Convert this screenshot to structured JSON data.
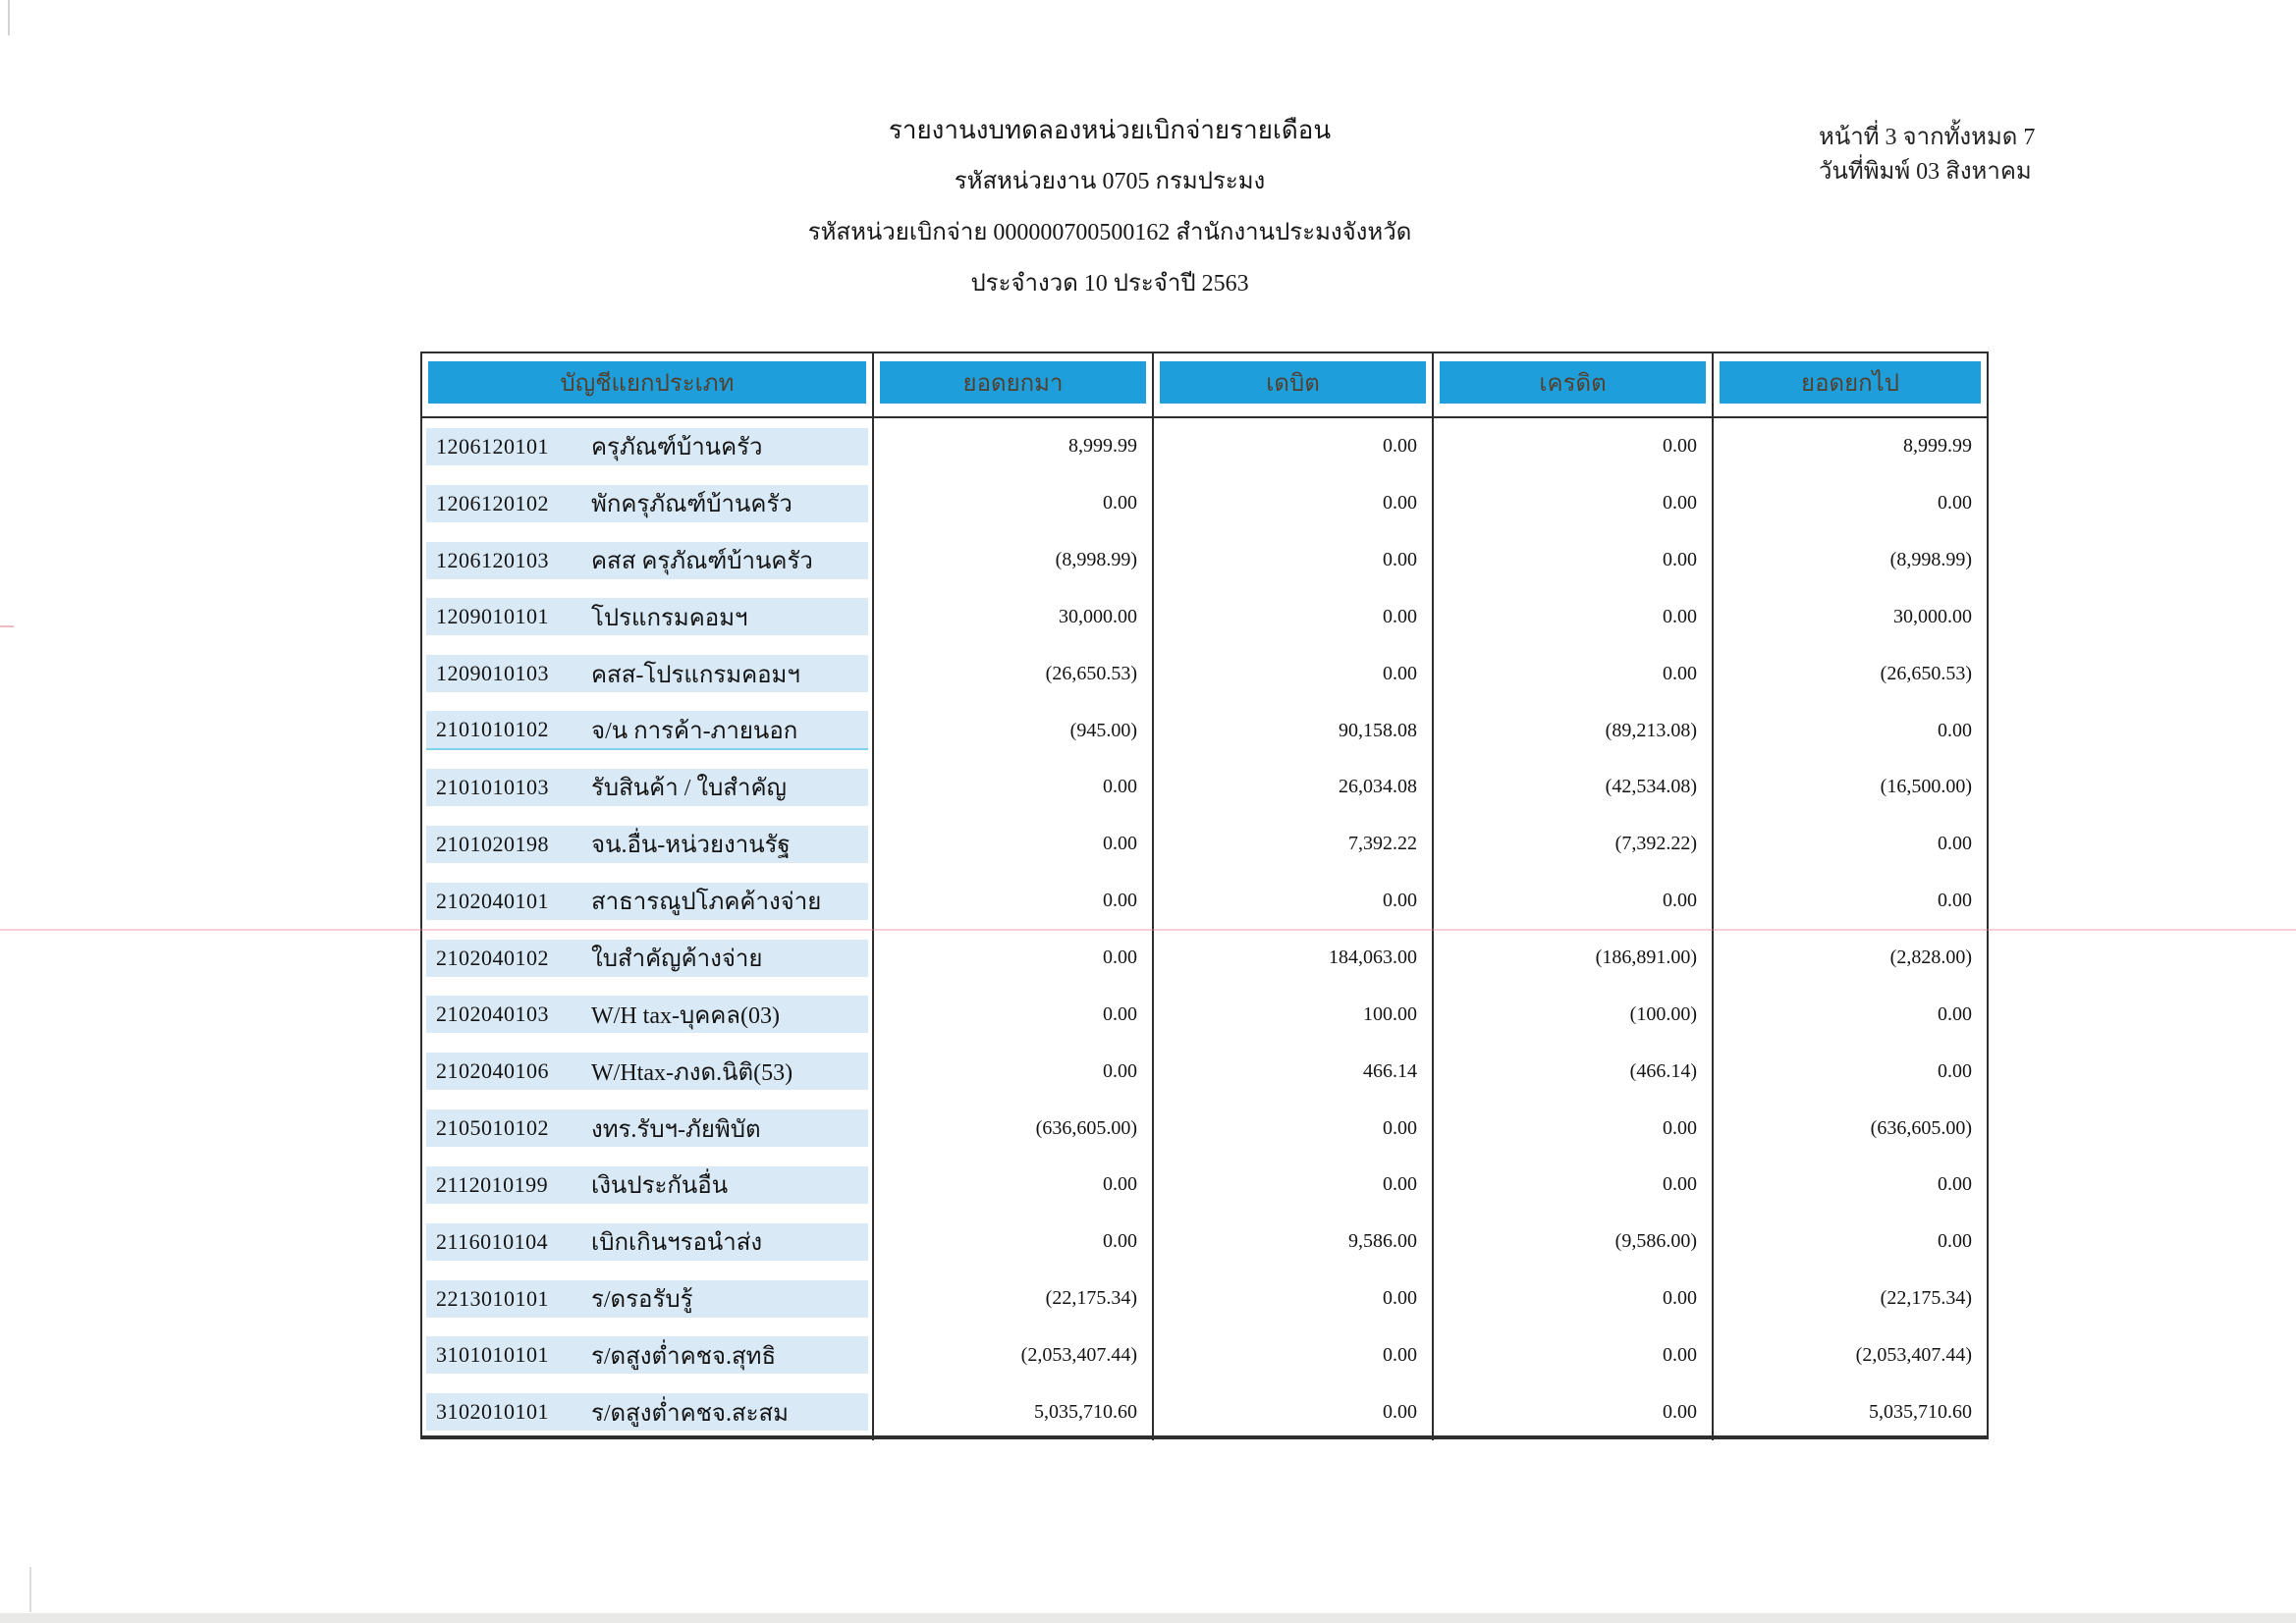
{
  "header": {
    "title_line1": "รายงานงบทดลองหน่วยเบิกจ่ายรายเดือน",
    "title_line2": "รหัสหน่วยงาน 0705 กรมประมง",
    "title_line3": "รหัสหน่วยเบิกจ่าย 000000700500162 สำนักงานประมงจังหวัด",
    "title_line4": "ประจำงวด 10 ประจำปี 2563"
  },
  "page_info": {
    "page_line": "หน้าที่ 3   จากทั้งหมด 7",
    "date_line": "วันที่พิมพ์  03 สิงหาคม"
  },
  "table": {
    "columns": {
      "account": "บัญชีแยกประเภท",
      "carry_forward": "ยอดยกมา",
      "debit": "เดบิต",
      "credit": "เครดิต",
      "balance": "ยอดยกไป"
    },
    "rows": [
      {
        "code": "1206120101",
        "name": "ครุภัณฑ์บ้านครัว",
        "carry_forward": "8,999.99",
        "debit": "0.00",
        "credit": "0.00",
        "balance": "8,999.99"
      },
      {
        "code": "1206120102",
        "name": "พักครุภัณฑ์บ้านครัว",
        "carry_forward": "0.00",
        "debit": "0.00",
        "credit": "0.00",
        "balance": "0.00"
      },
      {
        "code": "1206120103",
        "name": "คสส ครุภัณฑ์บ้านครัว",
        "carry_forward": "(8,998.99)",
        "debit": "0.00",
        "credit": "0.00",
        "balance": "(8,998.99)"
      },
      {
        "code": "1209010101",
        "name": "โปรแกรมคอมฯ",
        "carry_forward": "30,000.00",
        "debit": "0.00",
        "credit": "0.00",
        "balance": "30,000.00"
      },
      {
        "code": "1209010103",
        "name": "คสส-โปรแกรมคอมฯ",
        "carry_forward": "(26,650.53)",
        "debit": "0.00",
        "credit": "0.00",
        "balance": "(26,650.53)"
      },
      {
        "code": "2101010102",
        "name": "จ/น การค้า-ภายนอก",
        "carry_forward": "(945.00)",
        "debit": "90,158.08",
        "credit": "(89,213.08)",
        "balance": "0.00"
      },
      {
        "code": "2101010103",
        "name": "รับสินค้า / ใบสำคัญ",
        "carry_forward": "0.00",
        "debit": "26,034.08",
        "credit": "(42,534.08)",
        "balance": "(16,500.00)"
      },
      {
        "code": "2101020198",
        "name": "จน.อื่น-หน่วยงานรัฐ",
        "carry_forward": "0.00",
        "debit": "7,392.22",
        "credit": "(7,392.22)",
        "balance": "0.00"
      },
      {
        "code": "2102040101",
        "name": "สาธารณูปโภคค้างจ่าย",
        "carry_forward": "0.00",
        "debit": "0.00",
        "credit": "0.00",
        "balance": "0.00"
      },
      {
        "code": "2102040102",
        "name": "ใบสำคัญค้างจ่าย",
        "carry_forward": "0.00",
        "debit": "184,063.00",
        "credit": "(186,891.00)",
        "balance": "(2,828.00)"
      },
      {
        "code": "2102040103",
        "name": "W/H tax-บุคคล(03)",
        "carry_forward": "0.00",
        "debit": "100.00",
        "credit": "(100.00)",
        "balance": "0.00"
      },
      {
        "code": "2102040106",
        "name": "W/Htax-ภงด.นิติ(53)",
        "carry_forward": "0.00",
        "debit": "466.14",
        "credit": "(466.14)",
        "balance": "0.00"
      },
      {
        "code": "2105010102",
        "name": "งทร.รับฯ-ภัยพิบัต",
        "carry_forward": "(636,605.00)",
        "debit": "0.00",
        "credit": "0.00",
        "balance": "(636,605.00)"
      },
      {
        "code": "2112010199",
        "name": "เงินประกันอื่น",
        "carry_forward": "0.00",
        "debit": "0.00",
        "credit": "0.00",
        "balance": "0.00"
      },
      {
        "code": "2116010104",
        "name": "เบิกเกินฯรอนำส่ง",
        "carry_forward": "0.00",
        "debit": "9,586.00",
        "credit": "(9,586.00)",
        "balance": "0.00"
      },
      {
        "code": "2213010101",
        "name": "ร/ดรอรับรู้",
        "carry_forward": "(22,175.34)",
        "debit": "0.00",
        "credit": "0.00",
        "balance": "(22,175.34)"
      },
      {
        "code": "3101010101",
        "name": "ร/ดสูงต่ำคชจ.สุทธิ",
        "carry_forward": "(2,053,407.44)",
        "debit": "0.00",
        "credit": "0.00",
        "balance": "(2,053,407.44)"
      },
      {
        "code": "3102010101",
        "name": "ร/ดสูงต่ำคชจ.สะสม",
        "carry_forward": "5,035,710.60",
        "debit": "0.00",
        "credit": "0.00",
        "balance": "5,035,710.60"
      }
    ]
  },
  "colors": {
    "header_bar": "#1e9fdc",
    "row_band": "#d9e9f5"
  }
}
